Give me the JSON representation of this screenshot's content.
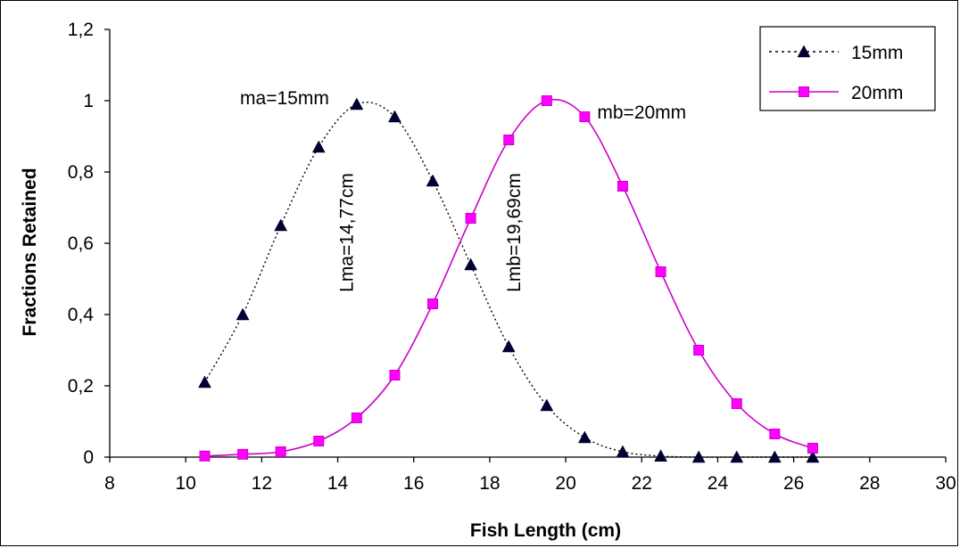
{
  "chart_data": {
    "type": "line",
    "title": "",
    "xlabel": "Fish Length (cm)",
    "ylabel": "Fractions Retained",
    "xlim": [
      8,
      30
    ],
    "ylim": [
      0,
      1.2
    ],
    "x_ticks": [
      "8",
      "10",
      "12",
      "14",
      "16",
      "18",
      "20",
      "22",
      "24",
      "26",
      "28",
      "30"
    ],
    "y_ticks": [
      "0",
      "0,2",
      "0,4",
      "0,6",
      "0,8",
      "1",
      "1,2"
    ],
    "grid": false,
    "legend_position": "top-right",
    "series": [
      {
        "name": "15mm",
        "color": "#000000",
        "line_style": "dotted",
        "marker": "triangle",
        "x": [
          10.5,
          11.5,
          12.5,
          13.5,
          14.5,
          15.5,
          16.5,
          17.5,
          18.5,
          19.5,
          20.5,
          21.5,
          22.5,
          23.5,
          24.5,
          25.5,
          26.5
        ],
        "y": [
          0.21,
          0.4,
          0.65,
          0.87,
          0.99,
          0.955,
          0.775,
          0.54,
          0.31,
          0.145,
          0.055,
          0.015,
          0.003,
          0.0,
          0.0,
          0.0,
          0.0
        ]
      },
      {
        "name": "20mm",
        "color": "#cc00cc",
        "line_style": "solid",
        "marker": "square",
        "x": [
          10.5,
          11.5,
          12.5,
          13.5,
          14.5,
          15.5,
          16.5,
          17.5,
          18.5,
          19.5,
          20.5,
          21.5,
          22.5,
          23.5,
          24.5,
          25.5,
          26.5
        ],
        "y": [
          0.003,
          0.008,
          0.015,
          0.045,
          0.11,
          0.23,
          0.43,
          0.67,
          0.89,
          1.0,
          0.955,
          0.76,
          0.52,
          0.3,
          0.15,
          0.065,
          0.025
        ]
      }
    ],
    "annotations": [
      {
        "text": "ma=15mm",
        "x": 12.6,
        "y": 0.99,
        "rotation": 0
      },
      {
        "text": "mb=20mm",
        "x": 22.0,
        "y": 0.95,
        "rotation": 0
      },
      {
        "text": "Lma=14,77cm",
        "x": 14.4,
        "y": 0.63,
        "rotation": -90
      },
      {
        "text": "Lmb=19,69cm",
        "x": 18.8,
        "y": 0.63,
        "rotation": -90
      }
    ]
  }
}
